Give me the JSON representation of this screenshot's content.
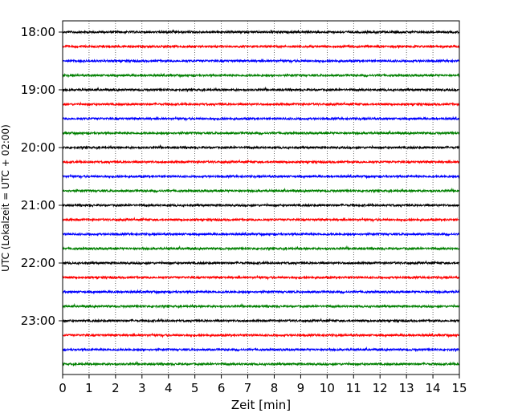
{
  "chart_data": {
    "type": "line",
    "title": "",
    "xlabel": "Zeit  [min]",
    "ylabel": "UTC (Lokalzeit = UTC + 02:00)",
    "xlim": [
      0,
      15
    ],
    "x_ticks": [
      "0",
      "1",
      "2",
      "3",
      "4",
      "5",
      "6",
      "7",
      "8",
      "9",
      "10",
      "11",
      "12",
      "13",
      "14",
      "15"
    ],
    "y_ticks": [
      "18:00",
      "19:00",
      "20:00",
      "21:00",
      "22:00",
      "23:00"
    ],
    "trace_start": "18:00",
    "trace_interval_min": 15,
    "trace_count": 24,
    "trace_colors": [
      "#000000",
      "#ff0000",
      "#0000ff",
      "#008000"
    ],
    "grid": "vertical dotted"
  }
}
